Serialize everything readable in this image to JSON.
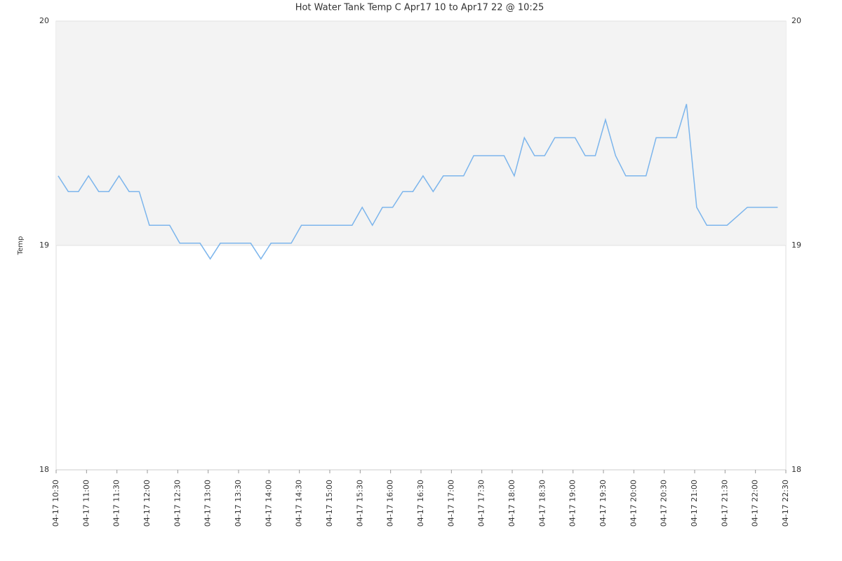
{
  "chart_data": {
    "type": "line",
    "title": "Hot Water Tank Temp C Apr17 10 to Apr17 22 @ 10:25",
    "y_label": "Temp",
    "x": [
      "04-17 10:32",
      "04-17 10:42",
      "04-17 10:52",
      "04-17 11:02",
      "04-17 11:12",
      "04-17 11:22",
      "04-17 11:32",
      "04-17 11:42",
      "04-17 11:52",
      "04-17 12:02",
      "04-17 12:12",
      "04-17 12:22",
      "04-17 12:32",
      "04-17 12:42",
      "04-17 12:52",
      "04-17 13:02",
      "04-17 13:12",
      "04-17 13:22",
      "04-17 13:32",
      "04-17 13:42",
      "04-17 13:52",
      "04-17 14:02",
      "04-17 14:12",
      "04-17 14:22",
      "04-17 14:32",
      "04-17 14:42",
      "04-17 14:52",
      "04-17 15:02",
      "04-17 15:12",
      "04-17 15:22",
      "04-17 15:32",
      "04-17 15:42",
      "04-17 15:52",
      "04-17 16:02",
      "04-17 16:12",
      "04-17 16:22",
      "04-17 16:32",
      "04-17 16:42",
      "04-17 16:52",
      "04-17 17:02",
      "04-17 17:12",
      "04-17 17:22",
      "04-17 17:32",
      "04-17 17:42",
      "04-17 17:52",
      "04-17 18:02",
      "04-17 18:12",
      "04-17 18:22",
      "04-17 18:32",
      "04-17 18:42",
      "04-17 18:52",
      "04-17 19:02",
      "04-17 19:12",
      "04-17 19:22",
      "04-17 19:32",
      "04-17 19:42",
      "04-17 19:52",
      "04-17 20:02",
      "04-17 20:12",
      "04-17 20:22",
      "04-17 20:32",
      "04-17 20:42",
      "04-17 20:52",
      "04-17 21:02",
      "04-17 21:12",
      "04-17 21:22",
      "04-17 21:32",
      "04-17 21:42",
      "04-17 21:52",
      "04-17 22:02",
      "04-17 22:12",
      "04-17 22:22"
    ],
    "series": [
      {
        "name": "Temp",
        "color": "#7cb5ec",
        "values": [
          19.31,
          19.24,
          19.24,
          19.31,
          19.24,
          19.24,
          19.31,
          19.24,
          19.24,
          19.09,
          19.09,
          19.09,
          19.01,
          19.01,
          19.01,
          18.94,
          19.01,
          19.01,
          19.01,
          19.01,
          18.94,
          19.01,
          19.01,
          19.01,
          19.09,
          19.09,
          19.09,
          19.09,
          19.09,
          19.09,
          19.17,
          19.09,
          19.17,
          19.17,
          19.24,
          19.24,
          19.31,
          19.24,
          19.31,
          19.31,
          19.31,
          19.4,
          19.4,
          19.4,
          19.4,
          19.31,
          19.48,
          19.4,
          19.4,
          19.48,
          19.48,
          19.48,
          19.4,
          19.4,
          19.56,
          19.4,
          19.31,
          19.31,
          19.31,
          19.48,
          19.48,
          19.48,
          19.63,
          19.17,
          19.09,
          19.09,
          19.09,
          19.13,
          19.17,
          19.17,
          19.17,
          19.17
        ]
      }
    ],
    "xlim": [
      "04-17 10:30",
      "04-17 22:30"
    ],
    "xticks": [
      "04-17 10:30",
      "04-17 11:00",
      "04-17 11:30",
      "04-17 12:00",
      "04-17 12:30",
      "04-17 13:00",
      "04-17 13:30",
      "04-17 14:00",
      "04-17 14:30",
      "04-17 15:00",
      "04-17 15:30",
      "04-17 16:00",
      "04-17 16:30",
      "04-17 17:00",
      "04-17 17:30",
      "04-17 18:00",
      "04-17 18:30",
      "04-17 19:00",
      "04-17 19:30",
      "04-17 20:00",
      "04-17 20:30",
      "04-17 21:00",
      "04-17 21:30",
      "04-17 22:00",
      "04-17 22:30"
    ],
    "ylim": [
      18,
      20
    ],
    "yticks": [
      18,
      19,
      20
    ],
    "highlight_range": [
      19,
      20
    ],
    "highlight_color": "#f3f3f3",
    "grid": true
  }
}
